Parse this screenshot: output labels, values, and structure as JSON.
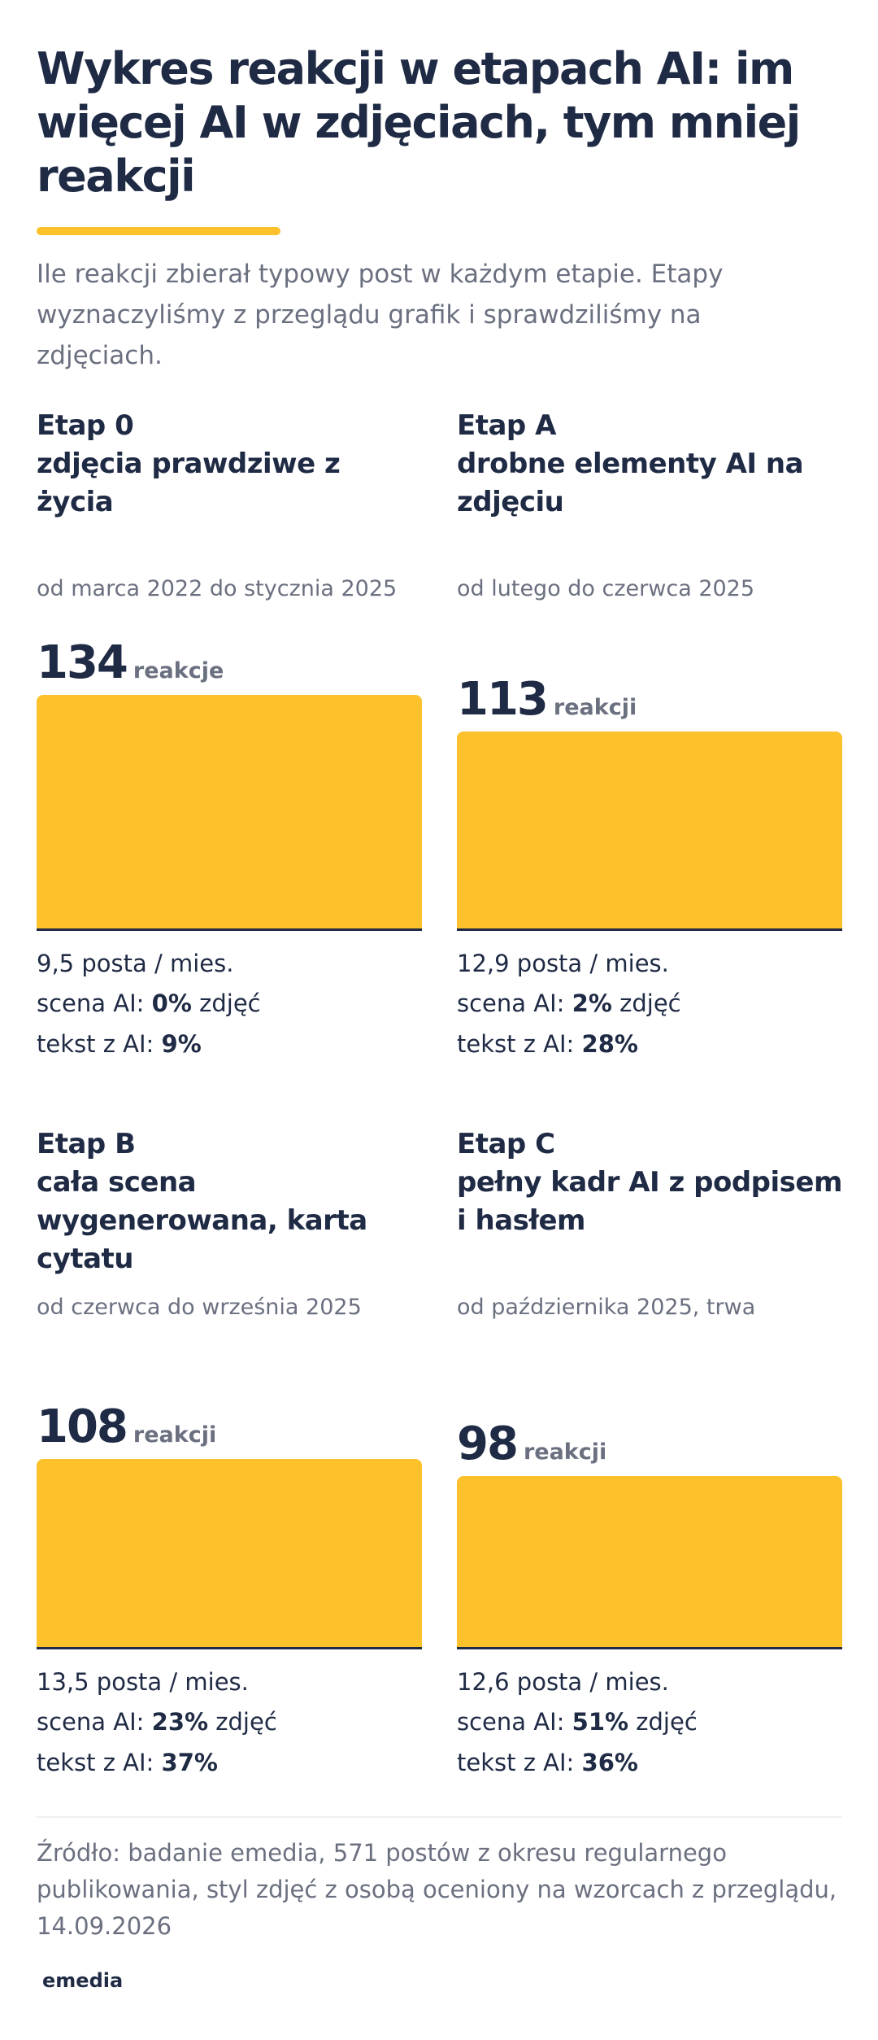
{
  "chart_data": {
    "type": "bar",
    "title": "Wykres reakcji w etapach AI: im więcej AI w zdjęciach, tym mniej reakcji",
    "subtitle": "Ile reakcji zbierał typowy post w każdym etapie. Etapy wyznaczyliśmy z przeglądu grafik i sprawdziliśmy na zdjęciach.",
    "color": "#fcc12b",
    "categories": [
      "Etap 0",
      "Etap A",
      "Etap B",
      "Etap C"
    ],
    "descriptions": [
      "zdjęcia prawdziwe z życia",
      "drobne elementy AI na zdjęciu",
      "cała scena wygenerowana, karta cytatu",
      "pełny kadr AI z podpisem i hasłem"
    ],
    "periods": [
      "od marca 2022 do stycznia 2025",
      "od lutego do czerwca 2025",
      "od czerwca do września 2025",
      "od października 2025, trwa"
    ],
    "values": [
      134,
      113,
      108,
      98
    ],
    "units": [
      "reakcje",
      "reakcji",
      "reakcji",
      "reakcji"
    ],
    "posts": [
      "9,5 posta / mies.",
      "12,9 posta / mies.",
      "13,5 posta / mies.",
      "12,6 posta / mies."
    ],
    "scene_label": "scena AI:",
    "scene": [
      "0%",
      "2%",
      "23%",
      "51%"
    ],
    "scene_suffix": "zdjęć",
    "text_label": "tekst z AI:",
    "text": [
      "9%",
      "28%",
      "37%",
      "36%"
    ],
    "source": "Źródło: badanie emedia, 571 postów z okresu regularnego publikowania, styl zdjęć z osobą oceniony na wzorcach z przeglądu, 14.09.2026",
    "logo": "emedia"
  }
}
